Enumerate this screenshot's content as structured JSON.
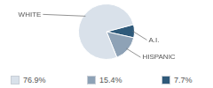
{
  "chart_data": {
    "type": "pie",
    "categories": [
      "A.I.",
      "HISPANIC",
      "WHITE"
    ],
    "values": [
      7.7,
      15.4,
      76.9
    ],
    "value_labels": [
      "7.7%",
      "15.4%",
      "76.9%"
    ],
    "colors": [
      "#2f5a7a",
      "#8ea2b6",
      "#d9e1ea"
    ],
    "legend": "bottom"
  }
}
